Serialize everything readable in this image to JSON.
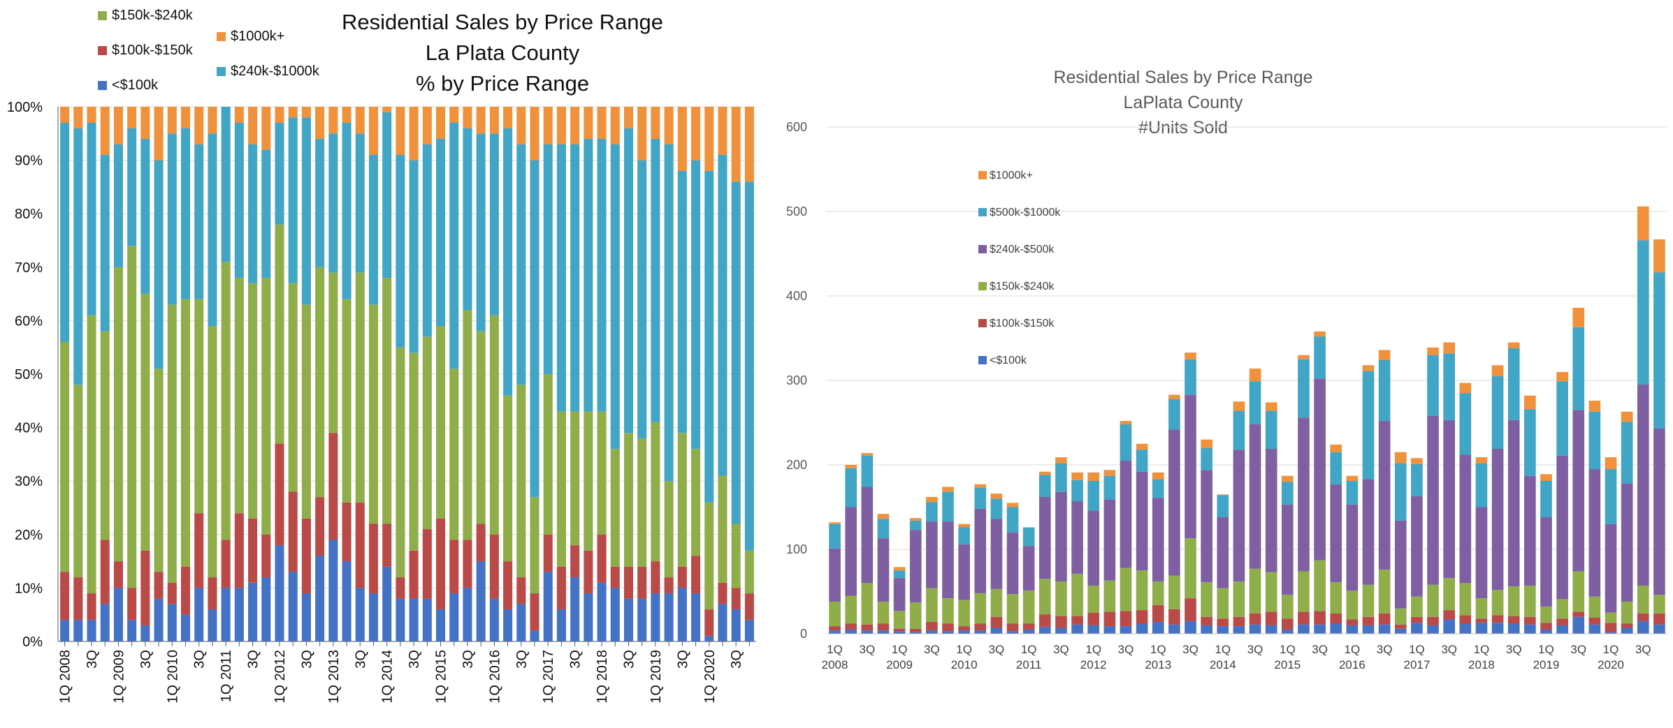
{
  "colors": {
    "lt100": "#4472C4",
    "p100_150": "#B94A48",
    "p150_240": "#8FAE4A",
    "p240_500": "#7E60A2",
    "p500_1000": "#41A5C5",
    "p1000": "#F0913C",
    "grid": "#D9D9D9",
    "axis": "#595959"
  },
  "chart_data": [
    {
      "type": "bar",
      "stacked": true,
      "percent": true,
      "title_lines": [
        "Residential Sales by Price Range",
        "La Plata County",
        "% by Price Range"
      ],
      "ylim": [
        0,
        100
      ],
      "y_ticks": [
        "0%",
        "10%",
        "20%",
        "30%",
        "40%",
        "50%",
        "60%",
        "70%",
        "80%",
        "90%",
        "100%"
      ],
      "x_labels": [
        "1Q 2008",
        "",
        "3Q",
        "",
        "1Q 2009",
        "",
        "3Q",
        "",
        "1Q 2010",
        "",
        "3Q",
        "",
        "1Q 2011",
        "",
        "3Q",
        "",
        "1Q 2012",
        "",
        "3Q",
        "",
        "1Q 2013",
        "",
        "3Q",
        "",
        "1Q 2014",
        "",
        "3Q",
        "",
        "1Q 2015",
        "",
        "3Q",
        "",
        "1Q 2016",
        "",
        "3Q",
        "",
        "1Q 2017",
        "",
        "3Q",
        "",
        "1Q 2018",
        "",
        "3Q",
        "",
        "1Q 2019",
        "",
        "3Q",
        "",
        "1Q 2020",
        "",
        "3Q",
        ""
      ],
      "legend": [
        {
          "key": "p150_240",
          "label": "$150k-$240k"
        },
        {
          "key": "p1000",
          "label": "$1000k+"
        },
        {
          "key": "p100_150",
          "label": "$100k-$150k"
        },
        {
          "key": "p500_1000",
          "label": "$240k-$1000k"
        },
        {
          "key": "lt100",
          "label": "<$100k"
        }
      ],
      "series_keys": [
        "lt100",
        "p100_150",
        "p150_240",
        "p500_1000",
        "p1000"
      ],
      "cumulative_tops": [
        [
          4,
          13,
          56,
          97,
          100
        ],
        [
          4,
          12,
          48,
          96,
          100
        ],
        [
          4,
          9,
          61,
          97,
          100
        ],
        [
          7,
          19,
          58,
          91,
          100
        ],
        [
          10,
          15,
          70,
          93,
          100
        ],
        [
          4,
          10,
          74,
          96,
          100
        ],
        [
          3,
          17,
          65,
          94,
          100
        ],
        [
          8,
          13,
          51,
          90,
          100
        ],
        [
          7,
          11,
          63,
          95,
          100
        ],
        [
          5,
          14,
          64,
          96,
          100
        ],
        [
          10,
          24,
          64,
          93,
          100
        ],
        [
          6,
          12,
          59,
          95,
          100
        ],
        [
          10,
          19,
          71,
          100,
          100
        ],
        [
          10,
          24,
          68,
          97,
          100
        ],
        [
          11,
          23,
          67,
          93,
          100
        ],
        [
          12,
          20,
          68,
          92,
          100
        ],
        [
          18,
          37,
          78,
          97,
          100
        ],
        [
          13,
          28,
          67,
          98,
          100
        ],
        [
          9,
          23,
          63,
          98,
          100
        ],
        [
          16,
          27,
          70,
          94,
          100
        ],
        [
          19,
          39,
          69,
          95,
          100
        ],
        [
          15,
          26,
          64,
          97,
          100
        ],
        [
          10,
          26,
          69,
          95,
          100
        ],
        [
          9,
          22,
          63,
          91,
          100
        ],
        [
          14,
          22,
          68,
          99,
          100
        ],
        [
          8,
          12,
          55,
          91,
          100
        ],
        [
          8,
          17,
          54,
          90,
          100
        ],
        [
          8,
          21,
          57,
          93,
          100
        ],
        [
          6,
          23,
          59,
          94,
          100
        ],
        [
          9,
          19,
          51,
          97,
          100
        ],
        [
          10,
          19,
          62,
          96,
          100
        ],
        [
          15,
          22,
          58,
          95,
          100
        ],
        [
          8,
          20,
          61,
          95,
          100
        ],
        [
          6,
          15,
          46,
          96,
          100
        ],
        [
          7,
          12,
          48,
          93,
          100
        ],
        [
          2,
          9,
          27,
          90,
          100
        ],
        [
          13,
          20,
          50,
          93,
          100
        ],
        [
          6,
          14,
          43,
          93,
          100
        ],
        [
          12,
          18,
          43,
          93,
          100
        ],
        [
          9,
          17,
          43,
          94,
          100
        ],
        [
          11,
          20,
          43,
          94,
          100
        ],
        [
          10,
          14,
          36,
          93,
          100
        ],
        [
          8,
          14,
          39,
          96,
          100
        ],
        [
          8,
          14,
          38,
          90,
          100
        ],
        [
          9,
          15,
          41,
          94,
          100
        ],
        [
          9,
          12,
          30,
          93,
          100
        ],
        [
          10,
          14,
          39,
          88,
          100
        ],
        [
          9,
          16,
          36,
          90,
          100
        ],
        [
          1,
          6,
          26,
          88,
          100
        ],
        [
          7,
          11,
          31,
          91,
          100
        ],
        [
          6,
          10,
          22,
          86,
          100
        ],
        [
          4,
          9,
          17,
          86,
          100
        ]
      ]
    },
    {
      "type": "bar",
      "stacked": true,
      "title_lines": [
        "Residential Sales by Price Range",
        "LaPlata County",
        "#Units Sold"
      ],
      "ylim": [
        0,
        600
      ],
      "y_ticks": [
        "0",
        "100",
        "200",
        "300",
        "400",
        "500",
        "600"
      ],
      "x_labels_top": [
        "1Q",
        "",
        "3Q",
        "",
        "1Q",
        "",
        "3Q",
        "",
        "1Q",
        "",
        "3Q",
        "",
        "1Q",
        "",
        "3Q",
        "",
        "1Q",
        "",
        "3Q",
        "",
        "1Q",
        "",
        "3Q",
        "",
        "1Q",
        "",
        "3Q",
        "",
        "1Q",
        "",
        "3Q",
        "",
        "1Q",
        "",
        "3Q",
        "",
        "1Q",
        "",
        "3Q",
        "",
        "1Q",
        "",
        "3Q",
        "",
        "1Q",
        "",
        "3Q",
        "",
        "1Q",
        "",
        "3Q",
        ""
      ],
      "x_labels_bottom": [
        "2008",
        "",
        "",
        "",
        "2009",
        "",
        "",
        "",
        "2010",
        "",
        "",
        "",
        "2011",
        "",
        "",
        "",
        "2012",
        "",
        "",
        "",
        "2013",
        "",
        "",
        "",
        "2014",
        "",
        "",
        "",
        "2015",
        "",
        "",
        "",
        "2016",
        "",
        "",
        "",
        "2017",
        "",
        "",
        "",
        "2018",
        "",
        "",
        "",
        "2019",
        "",
        "",
        "",
        "2020",
        "",
        "",
        ""
      ],
      "legend": [
        {
          "key": "p1000",
          "label": "$1000k+"
        },
        {
          "key": "p500_1000",
          "label": "$500k-$1000k"
        },
        {
          "key": "p240_500",
          "label": "$240k-$500k"
        },
        {
          "key": "p150_240",
          "label": "$150k-$240k"
        },
        {
          "key": "p100_150",
          "label": "$100k-$150k"
        },
        {
          "key": "lt100",
          "label": "<$100k"
        }
      ],
      "series_keys": [
        "lt100",
        "p100_150",
        "p150_240",
        "p240_500",
        "p500_1000",
        "p1000"
      ],
      "cumulative_tops": [
        [
          4,
          9,
          38,
          101,
          130,
          132
        ],
        [
          5,
          12,
          45,
          150,
          196,
          200
        ],
        [
          4,
          11,
          60,
          174,
          211,
          214
        ],
        [
          4,
          12,
          38,
          113,
          136,
          142
        ],
        [
          3,
          6,
          27,
          66,
          75,
          79
        ],
        [
          2,
          6,
          37,
          123,
          134,
          137
        ],
        [
          4,
          14,
          54,
          133,
          156,
          162
        ],
        [
          3,
          12,
          42,
          133,
          168,
          174
        ],
        [
          4,
          9,
          40,
          106,
          126,
          130
        ],
        [
          4,
          12,
          48,
          148,
          173,
          177
        ],
        [
          7,
          20,
          53,
          136,
          160,
          166
        ],
        [
          3,
          12,
          47,
          120,
          150,
          155
        ],
        [
          5,
          12,
          51,
          104,
          126,
          126
        ],
        [
          8,
          23,
          65,
          162,
          188,
          192
        ],
        [
          7,
          21,
          62,
          168,
          202,
          209
        ],
        [
          11,
          21,
          71,
          157,
          182,
          191
        ],
        [
          10,
          25,
          57,
          146,
          181,
          191
        ],
        [
          9,
          26,
          63,
          159,
          187,
          194
        ],
        [
          9,
          27,
          78,
          205,
          248,
          252
        ],
        [
          12,
          28,
          75,
          192,
          218,
          225
        ],
        [
          14,
          34,
          62,
          161,
          183,
          191
        ],
        [
          11,
          29,
          69,
          242,
          278,
          283
        ],
        [
          15,
          42,
          113,
          283,
          325,
          333
        ],
        [
          10,
          20,
          61,
          194,
          220,
          230
        ],
        [
          9,
          18,
          54,
          138,
          164,
          165
        ],
        [
          9,
          20,
          62,
          218,
          264,
          275
        ],
        [
          11,
          24,
          77,
          248,
          299,
          314
        ],
        [
          10,
          26,
          73,
          219,
          264,
          274
        ],
        [
          5,
          18,
          46,
          153,
          180,
          187
        ],
        [
          11,
          26,
          74,
          256,
          325,
          330
        ],
        [
          11,
          27,
          87,
          302,
          352,
          358
        ],
        [
          12,
          24,
          61,
          177,
          215,
          224
        ],
        [
          10,
          17,
          51,
          153,
          181,
          187
        ],
        [
          10,
          20,
          58,
          183,
          311,
          318
        ],
        [
          11,
          24,
          76,
          252,
          324,
          336
        ],
        [
          6,
          11,
          30,
          134,
          202,
          215
        ],
        [
          13,
          20,
          44,
          163,
          201,
          208
        ],
        [
          10,
          20,
          58,
          258,
          330,
          339
        ],
        [
          17,
          28,
          66,
          253,
          332,
          345
        ],
        [
          12,
          22,
          60,
          212,
          285,
          297
        ],
        [
          13,
          18,
          42,
          150,
          202,
          209
        ],
        [
          13,
          22,
          52,
          219,
          305,
          318
        ],
        [
          12,
          21,
          56,
          253,
          338,
          345
        ],
        [
          11,
          20,
          57,
          187,
          266,
          282
        ],
        [
          5,
          13,
          32,
          138,
          181,
          189
        ],
        [
          10,
          18,
          41,
          211,
          299,
          310
        ],
        [
          20,
          26,
          74,
          265,
          363,
          386
        ],
        [
          11,
          19,
          44,
          195,
          263,
          276
        ],
        [
          2,
          13,
          25,
          130,
          195,
          209
        ],
        [
          7,
          12,
          38,
          178,
          251,
          263
        ],
        [
          15,
          24,
          57,
          295,
          466,
          506
        ],
        [
          11,
          24,
          46,
          243,
          428,
          467
        ]
      ]
    }
  ]
}
